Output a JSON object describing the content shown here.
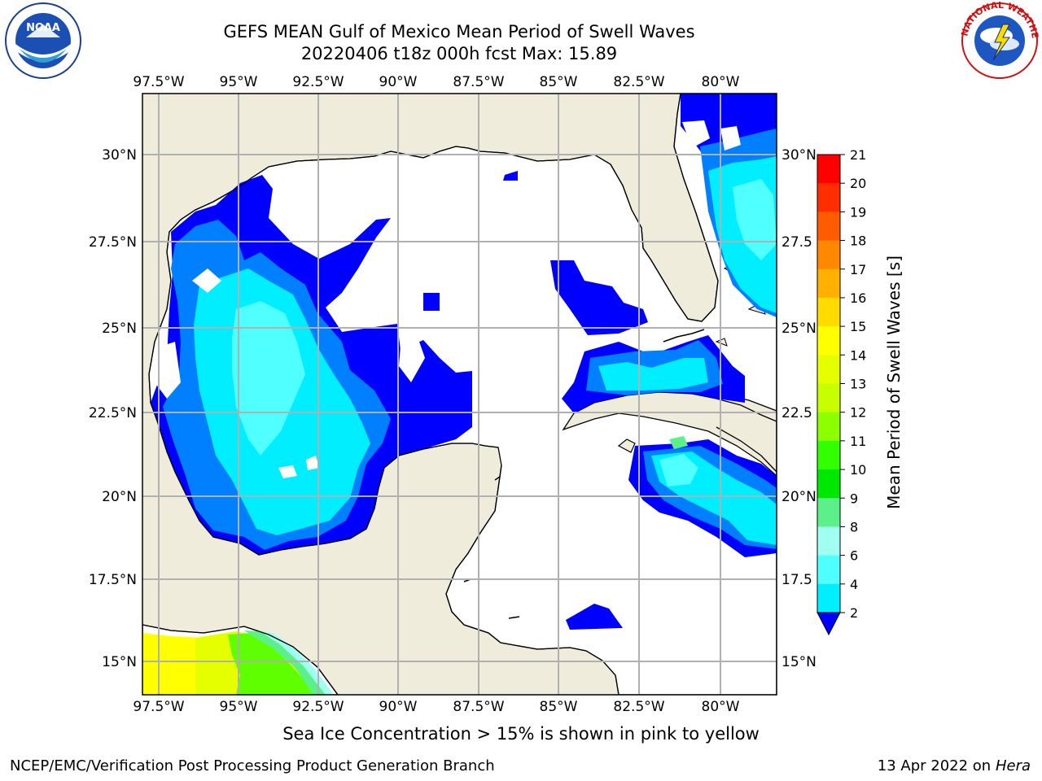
{
  "header": {
    "title_line1": "GEFS MEAN Gulf of Mexico Mean Period of Swell Waves",
    "title_line2": "20220406 t18z 000h fcst   Max: 15.89"
  },
  "logos": {
    "left": {
      "name": "noaa-logo",
      "text": "NOAA"
    },
    "right": {
      "name": "national-weather-service-logo",
      "text": "NATIONAL WEATHER SERVICE"
    }
  },
  "map": {
    "lon_labels": [
      "97.5°W",
      "95°W",
      "92.5°W",
      "90°W",
      "87.5°W",
      "85°W",
      "82.5°W",
      "80°W"
    ],
    "lat_labels_left": [
      "30°N",
      "27.5°N",
      "25°N",
      "22.5°N",
      "20°N",
      "17.5°N",
      "15°N"
    ],
    "lat_labels_right": [
      "30°N",
      "27.5",
      "25°N",
      "22.5",
      "20°N",
      "17.5",
      "15°N"
    ],
    "colors": {
      "land": "#efecdc",
      "ocean_nodata": "#ffffff",
      "grid": "#b0b0b0"
    }
  },
  "colorbar": {
    "title": "Mean Period of Swell Waves [s]",
    "ticks": [
      "21",
      "20",
      "19",
      "18",
      "17",
      "16",
      "15",
      "14",
      "13",
      "12",
      "11",
      "10",
      "9",
      "8",
      "6",
      "4",
      "2"
    ],
    "colors": [
      "#ff0000",
      "#ff2e00",
      "#ff5b00",
      "#ff8800",
      "#ffb000",
      "#ffdb00",
      "#ffff00",
      "#e6ff00",
      "#c8ff00",
      "#8cff00",
      "#32ff00",
      "#00e800",
      "#5cf08a",
      "#a0fff0",
      "#50ffff",
      "#00eeff",
      "#0080ff"
    ],
    "extend_color": "#0000ff"
  },
  "footer": {
    "note": "Sea Ice Concentration > 15% is shown in pink to yellow",
    "credit_left": "NCEP/EMC/Verification Post Processing Product Generation Branch",
    "credit_date": "13 Apr 2022 on ",
    "credit_host": "Hera"
  }
}
